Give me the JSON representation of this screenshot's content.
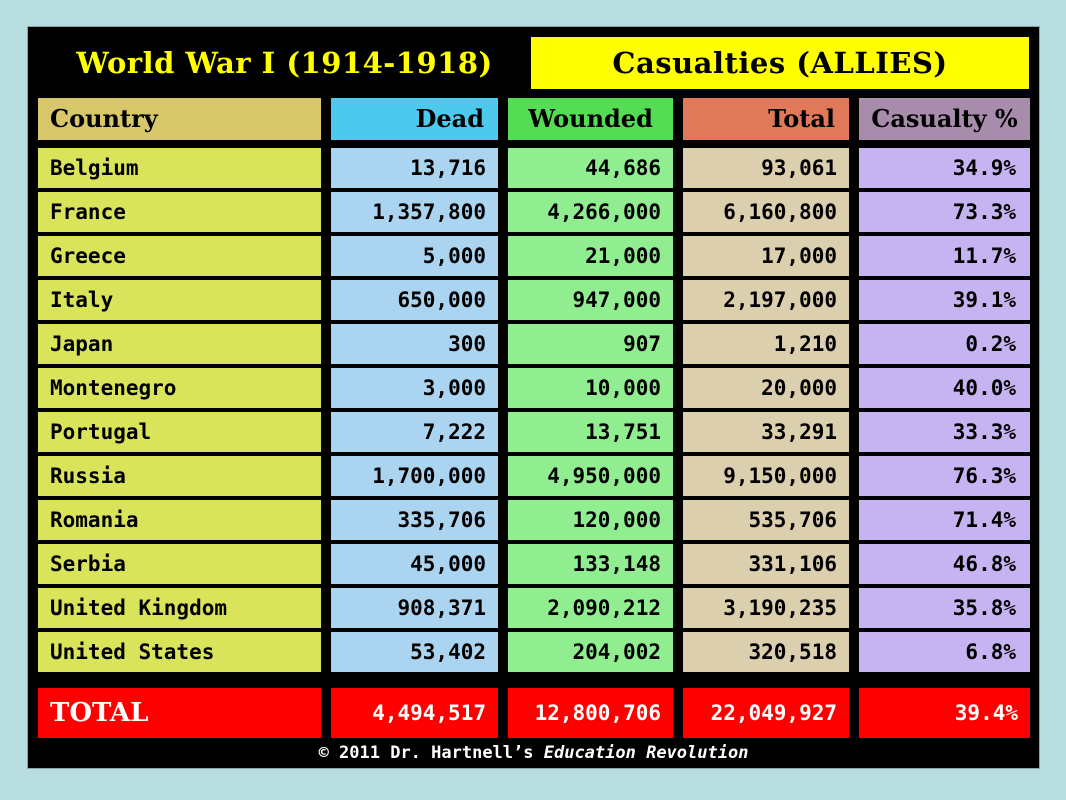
{
  "header": {
    "title_left": "World War I (1914-1918)",
    "title_right": "Casualties (ALLIES)"
  },
  "table": {
    "columns": [
      {
        "label": "Country"
      },
      {
        "label": "Dead"
      },
      {
        "label": "Wounded"
      },
      {
        "label": "Total"
      },
      {
        "label": "Casualty %"
      }
    ],
    "rows": [
      {
        "country": "Belgium",
        "dead": "13,716",
        "wounded": "44,686",
        "total": "93,061",
        "pct": "34.9%"
      },
      {
        "country": "France",
        "dead": "1,357,800",
        "wounded": "4,266,000",
        "total": "6,160,800",
        "pct": "73.3%"
      },
      {
        "country": "Greece",
        "dead": "5,000",
        "wounded": "21,000",
        "total": "17,000",
        "pct": "11.7%"
      },
      {
        "country": "Italy",
        "dead": "650,000",
        "wounded": "947,000",
        "total": "2,197,000",
        "pct": "39.1%"
      },
      {
        "country": "Japan",
        "dead": "300",
        "wounded": "907",
        "total": "1,210",
        "pct": "0.2%"
      },
      {
        "country": "Montenegro",
        "dead": "3,000",
        "wounded": "10,000",
        "total": "20,000",
        "pct": "40.0%"
      },
      {
        "country": "Portugal",
        "dead": "7,222",
        "wounded": "13,751",
        "total": "33,291",
        "pct": "33.3%"
      },
      {
        "country": "Russia",
        "dead": "1,700,000",
        "wounded": "4,950,000",
        "total": "9,150,000",
        "pct": "76.3%"
      },
      {
        "country": "Romania",
        "dead": "335,706",
        "wounded": "120,000",
        "total": "535,706",
        "pct": "71.4%"
      },
      {
        "country": "Serbia",
        "dead": "45,000",
        "wounded": "133,148",
        "total": "331,106",
        "pct": "46.8%"
      },
      {
        "country": "United Kingdom",
        "dead": "908,371",
        "wounded": "2,090,212",
        "total": "3,190,235",
        "pct": "35.8%"
      },
      {
        "country": "United States",
        "dead": "53,402",
        "wounded": "204,002",
        "total": "320,518",
        "pct": "6.8%"
      }
    ],
    "total_row": {
      "label": "TOTAL",
      "dead": "4,494,517",
      "wounded": "12,800,706",
      "total": "22,049,927",
      "pct": "39.4%"
    }
  },
  "footer": {
    "prefix": "© 2011 Dr. Hartnell’s ",
    "italic": "Education Revolution"
  },
  "colors": {
    "page_background": "#b8dde0",
    "panel_background": "#000000",
    "title_yellow": "#ffff00",
    "header_country": "#d8c76a",
    "header_dead": "#4dc9ed",
    "header_wounded": "#55dc55",
    "header_total": "#e0795a",
    "header_pct": "#a78cab",
    "cell_country": "#d9e45a",
    "cell_dead": "#aad4f0",
    "cell_wounded": "#90ee90",
    "cell_total": "#dbcfae",
    "cell_pct": "#c6b3f1",
    "total_row_red": "#ff0000"
  },
  "chart_data": {
    "type": "table",
    "title": "World War I (1914-1918) — Casualties (ALLIES)",
    "columns": [
      "Country",
      "Dead",
      "Wounded",
      "Total",
      "Casualty %"
    ],
    "rows": [
      [
        "Belgium",
        13716,
        44686,
        93061,
        34.9
      ],
      [
        "France",
        1357800,
        4266000,
        6160800,
        73.3
      ],
      [
        "Greece",
        5000,
        21000,
        17000,
        11.7
      ],
      [
        "Italy",
        650000,
        947000,
        2197000,
        39.1
      ],
      [
        "Japan",
        300,
        907,
        1210,
        0.2
      ],
      [
        "Montenegro",
        3000,
        10000,
        20000,
        40.0
      ],
      [
        "Portugal",
        7222,
        13751,
        33291,
        33.3
      ],
      [
        "Russia",
        1700000,
        4950000,
        9150000,
        76.3
      ],
      [
        "Romania",
        335706,
        120000,
        535706,
        71.4
      ],
      [
        "Serbia",
        45000,
        133148,
        331106,
        46.8
      ],
      [
        "United Kingdom",
        908371,
        2090212,
        3190235,
        35.8
      ],
      [
        "United States",
        53402,
        204002,
        320518,
        6.8
      ]
    ],
    "total_row": [
      "TOTAL",
      4494517,
      12800706,
      22049927,
      39.4
    ],
    "footer": "© 2011 Dr. Hartnell’s Education Revolution"
  }
}
